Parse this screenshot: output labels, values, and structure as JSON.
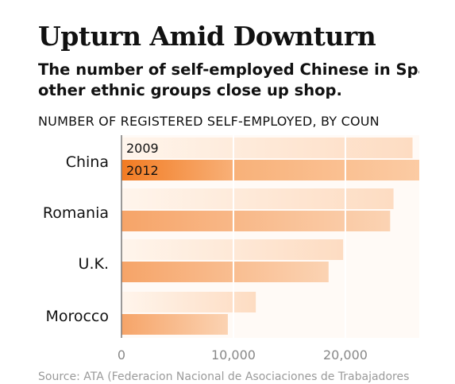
{
  "title": "Upturn Amid Downturn",
  "subtitle_lines": [
    "The number of self-employed Chinese in Spain r",
    "other ethnic groups close up shop."
  ],
  "unit_label": "NUMBER OF REGISTERED SELF-EMPLOYED, BY COUN",
  "source": "Source: ATA (Federacion Nacional de Asociaciones de Trabajadores",
  "colors": {
    "bar_2009": "#fde3cd",
    "bar_2012": "#f4a166",
    "text": "#111111",
    "axis": "#7a7a7a",
    "grid": "#ffffff"
  },
  "chart_data": {
    "type": "bar",
    "orientation": "horizontal",
    "categories": [
      "China",
      "Romania",
      "U.K.",
      "Morocco"
    ],
    "series": [
      {
        "name": "2009",
        "values": [
          26000,
          24300,
          19800,
          12000
        ]
      },
      {
        "name": "2012",
        "values": [
          29000,
          24000,
          18500,
          9500
        ]
      }
    ],
    "xlim": [
      0,
      26600
    ],
    "xticks": [
      0,
      10000,
      20000
    ],
    "xtick_labels": [
      "0",
      "10,000",
      "20,000"
    ],
    "grid": true,
    "legend": "inline labels on the China bars"
  }
}
